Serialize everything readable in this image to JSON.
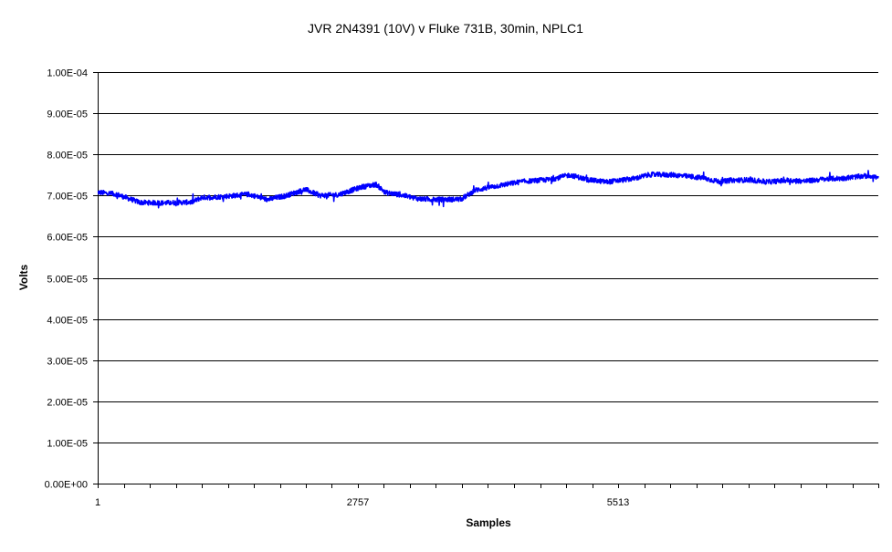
{
  "chart_data": {
    "type": "line",
    "title": "JVR 2N4391 (10V) v Fluke 731B, 30min, NPLC1",
    "xlabel": "Samples",
    "ylabel": "Volts",
    "ylim": [
      0,
      0.0001
    ],
    "y_tick_values": [
      0,
      1e-05,
      2e-05,
      3e-05,
      4e-05,
      5e-05,
      6e-05,
      7e-05,
      8e-05,
      9e-05,
      0.0001
    ],
    "y_tick_labels": [
      "0.00E+00",
      "1.00E-05",
      "2.00E-05",
      "3.00E-05",
      "4.00E-05",
      "5.00E-05",
      "6.00E-05",
      "7.00E-05",
      "8.00E-05",
      "9.00E-05",
      "1.00E-04"
    ],
    "xlim": [
      1,
      8269
    ],
    "x_tick_values": [
      1,
      2757,
      5513
    ],
    "x_tick_labels": [
      "1",
      "2757",
      "5513"
    ],
    "grid": "horizontal",
    "legend": "none",
    "series_color": "#0000ff",
    "noise_amplitude": 1.2e-06,
    "series": [
      {
        "x": [
          1,
          200,
          450,
          700,
          1000,
          1100,
          1300,
          1600,
          1800,
          2000,
          2200,
          2350,
          2550,
          2800,
          2950,
          3050,
          3200,
          3400,
          3600,
          3850,
          4000,
          4200,
          4500,
          4800,
          5000,
          5200,
          5400,
          5700,
          5850,
          6100,
          6400,
          6600,
          6700,
          6900,
          7100,
          7300,
          7500,
          7700,
          7900,
          8100,
          8200,
          8269
        ],
        "values": [
          7.08e-05,
          7.03e-05,
          6.83e-05,
          6.82e-05,
          6.84e-05,
          6.95e-05,
          6.97e-05,
          7.03e-05,
          6.9e-05,
          7e-05,
          7.15e-05,
          7e-05,
          7.02e-05,
          7.21e-05,
          7.27e-05,
          7.07e-05,
          7.02e-05,
          6.92e-05,
          6.9e-05,
          6.91e-05,
          7.13e-05,
          7.22e-05,
          7.34e-05,
          7.39e-05,
          7.5e-05,
          7.38e-05,
          7.33e-05,
          7.42e-05,
          7.51e-05,
          7.5e-05,
          7.43e-05,
          7.33e-05,
          7.37e-05,
          7.38e-05,
          7.33e-05,
          7.37e-05,
          7.35e-05,
          7.4e-05,
          7.42e-05,
          7.47e-05,
          7.48e-05,
          7.42e-05
        ]
      }
    ]
  }
}
